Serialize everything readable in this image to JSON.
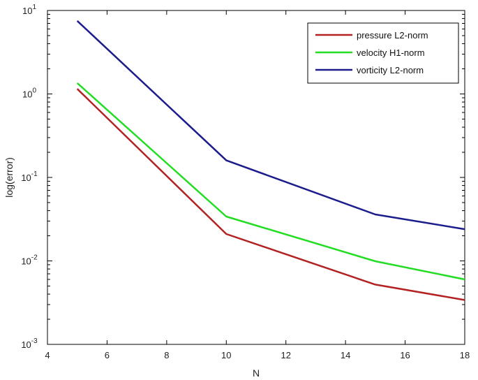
{
  "chart_data": {
    "type": "line",
    "xlabel": "N",
    "ylabel": "log(error)",
    "xlim": [
      4,
      18
    ],
    "ylim": [
      0.001,
      10
    ],
    "yscale": "log",
    "grid": false,
    "legend_position": "top-right",
    "x_ticks": [
      4,
      6,
      8,
      10,
      12,
      14,
      16,
      18
    ],
    "x_tick_labels": [
      "4",
      "6",
      "8",
      "10",
      "12",
      "14",
      "16",
      "18"
    ],
    "y_ticks": [
      {
        "value": 0.001,
        "base": "10",
        "exp": "-3"
      },
      {
        "value": 0.01,
        "base": "10",
        "exp": "-2"
      },
      {
        "value": 0.1,
        "base": "10",
        "exp": "-1"
      },
      {
        "value": 1,
        "base": "10",
        "exp": "0"
      },
      {
        "value": 10,
        "base": "10",
        "exp": "1"
      }
    ],
    "x": [
      5,
      10,
      15,
      18
    ],
    "series": [
      {
        "name": "pressure L2-norm",
        "color": "#b22222",
        "values": [
          1.15,
          0.021,
          0.0052,
          0.0034
        ]
      },
      {
        "name": "velocity H1-norm",
        "color": "#22dd22",
        "values": [
          1.35,
          0.034,
          0.0099,
          0.006
        ]
      },
      {
        "name": "vorticity L2-norm",
        "color": "#1c1c8c",
        "values": [
          7.5,
          0.16,
          0.036,
          0.024
        ]
      }
    ]
  }
}
